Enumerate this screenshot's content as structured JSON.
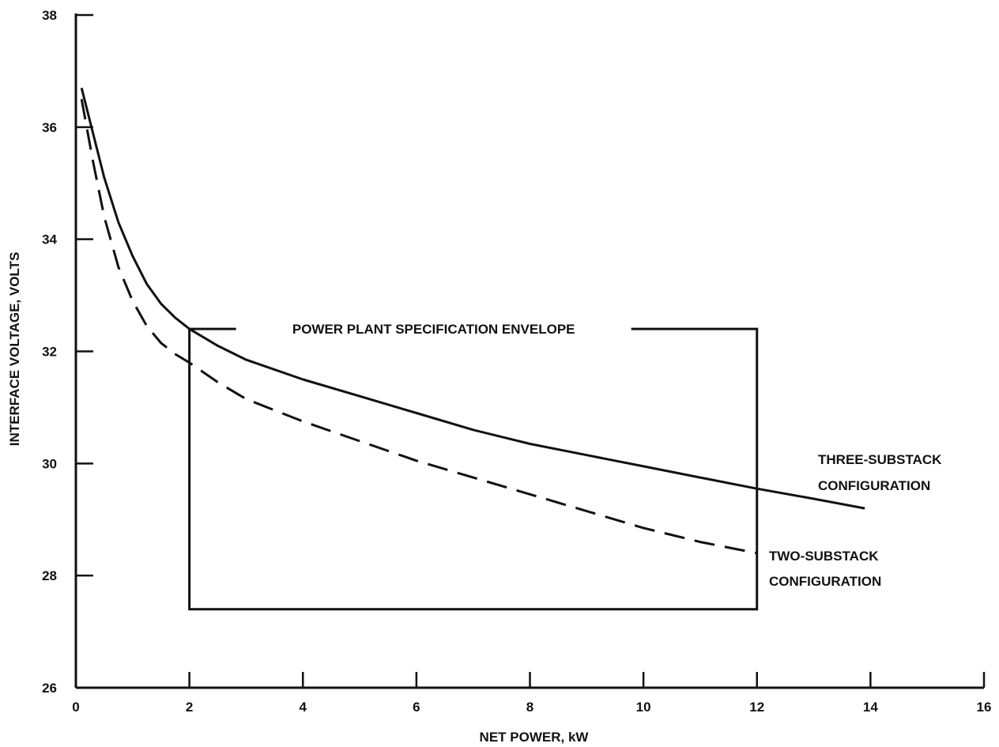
{
  "chart_data": {
    "type": "line",
    "title": "",
    "xlabel": "NET POWER, kW",
    "ylabel": "INTERFACE VOLTAGE, VOLTS",
    "xlim": [
      0,
      16
    ],
    "ylim": [
      26,
      38
    ],
    "xticks": [
      0,
      2,
      4,
      6,
      8,
      10,
      12,
      14,
      16
    ],
    "yticks": [
      26,
      28,
      30,
      32,
      34,
      36,
      38
    ],
    "xtick_labels": [
      "0",
      "2",
      "4",
      "6",
      "8",
      "10",
      "12",
      "14",
      "16"
    ],
    "ytick_labels": [
      "26",
      "28",
      "30",
      "32",
      "34",
      "36",
      "38"
    ],
    "grid": false,
    "series": [
      {
        "name": "THREE-SUBSTACK CONFIGURATION",
        "style": "solid",
        "x": [
          0.1,
          0.3,
          0.5,
          0.75,
          1.0,
          1.25,
          1.5,
          1.75,
          2.0,
          2.5,
          3.0,
          4.0,
          5.0,
          6.0,
          7.0,
          8.0,
          9.0,
          10.0,
          11.0,
          12.0,
          13.0,
          13.9
        ],
        "y": [
          36.7,
          35.9,
          35.1,
          34.3,
          33.7,
          33.2,
          32.85,
          32.6,
          32.4,
          32.1,
          31.85,
          31.5,
          31.2,
          30.9,
          30.6,
          30.35,
          30.15,
          29.95,
          29.75,
          29.55,
          29.37,
          29.2
        ]
      },
      {
        "name": "TWO-SUBSTACK CONFIGURATION",
        "style": "dashed",
        "x": [
          0.1,
          0.3,
          0.5,
          0.75,
          1.0,
          1.25,
          1.5,
          1.75,
          2.0,
          2.5,
          3.0,
          4.0,
          5.0,
          6.0,
          7.0,
          8.0,
          9.0,
          10.0,
          11.0,
          12.0
        ],
        "y": [
          36.5,
          35.4,
          34.4,
          33.5,
          32.9,
          32.45,
          32.15,
          31.95,
          31.8,
          31.45,
          31.15,
          30.75,
          30.4,
          30.05,
          29.75,
          29.45,
          29.15,
          28.85,
          28.6,
          28.4
        ]
      }
    ],
    "annotations": {
      "envelope_label": "POWER PLANT SPECIFICATION ENVELOPE",
      "envelope": {
        "x_min": 2,
        "x_max": 12,
        "y_min": 27.4,
        "y_max": 32.4
      },
      "three_substack_label": [
        "THREE-SUBSTACK",
        "CONFIGURATION"
      ],
      "two_substack_label": [
        "TWO-SUBSTACK",
        "CONFIGURATION"
      ]
    },
    "colors": {
      "ink": "#111111",
      "background": "#ffffff"
    }
  }
}
